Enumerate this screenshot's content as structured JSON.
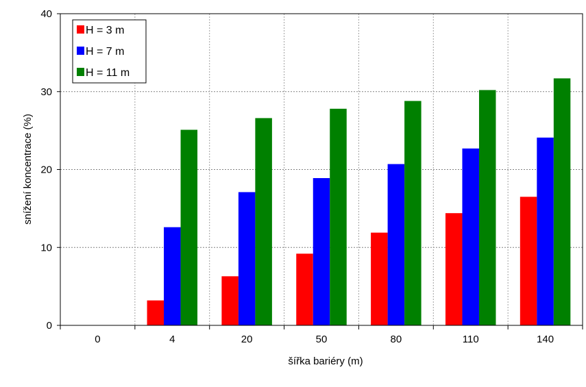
{
  "chart_data": {
    "type": "bar",
    "title": "",
    "xlabel": "šířka bariéry (m)",
    "ylabel": "snížení koncentrace (%)",
    "categories": [
      "0",
      "4",
      "20",
      "50",
      "80",
      "110",
      "140"
    ],
    "ylim": [
      0,
      40
    ],
    "yticks": [
      "0",
      "10",
      "20",
      "30",
      "40"
    ],
    "ytick_values": [
      0,
      10,
      20,
      30,
      40
    ],
    "grid": true,
    "legend_position": "top-left",
    "series": [
      {
        "name": "H = 3 m",
        "color": "#ff0000",
        "values": [
          0,
          3.2,
          6.3,
          9.2,
          11.9,
          14.4,
          16.5
        ]
      },
      {
        "name": "H = 7 m",
        "color": "#0000ff",
        "values": [
          0,
          12.6,
          17.1,
          18.9,
          20.7,
          22.7,
          24.1
        ]
      },
      {
        "name": "H = 11 m",
        "color": "#008000",
        "values": [
          0,
          25.1,
          26.6,
          27.8,
          28.8,
          30.2,
          31.7
        ]
      }
    ]
  }
}
